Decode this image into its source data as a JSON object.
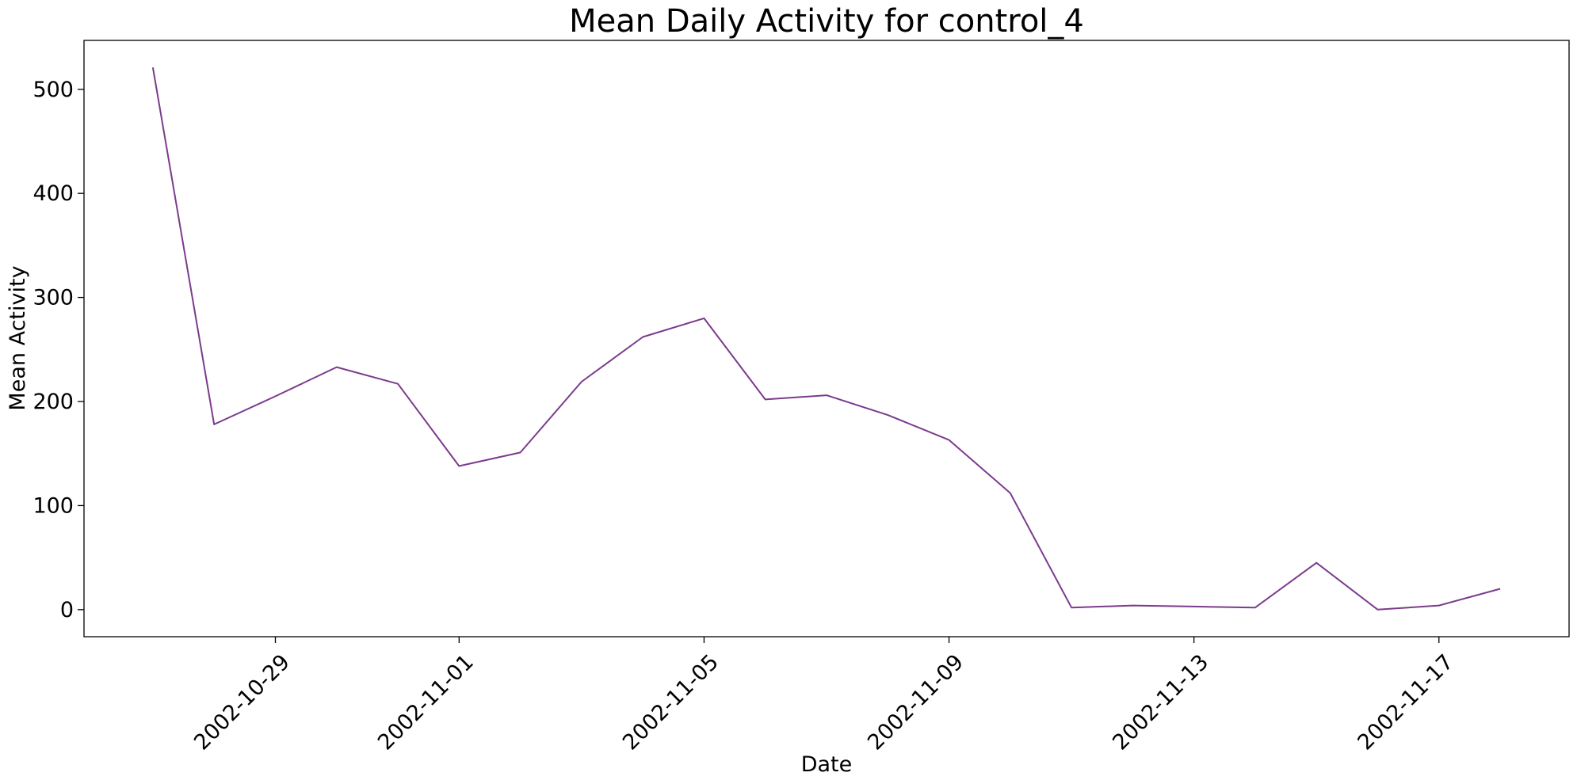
{
  "chart_data": {
    "type": "line",
    "title": "Mean Daily Activity for control_4",
    "xlabel": "Date",
    "ylabel": "Mean Activity",
    "x": [
      "2002-10-27",
      "2002-10-28",
      "2002-10-29",
      "2002-10-30",
      "2002-10-31",
      "2002-11-01",
      "2002-11-02",
      "2002-11-03",
      "2002-11-04",
      "2002-11-05",
      "2002-11-06",
      "2002-11-07",
      "2002-11-08",
      "2002-11-09",
      "2002-11-10",
      "2002-11-11",
      "2002-11-12",
      "2002-11-13",
      "2002-11-14",
      "2002-11-15",
      "2002-11-16",
      "2002-11-17",
      "2002-11-18"
    ],
    "series": [
      {
        "name": "control_4",
        "color": "#7b3b8c",
        "values": [
          521,
          178,
          205,
          233,
          217,
          138,
          151,
          219,
          262,
          280,
          202,
          206,
          187,
          163,
          112,
          2,
          4,
          3,
          2,
          45,
          0,
          4,
          20
        ]
      }
    ],
    "xticks": [
      "2002-10-29",
      "2002-11-01",
      "2002-11-05",
      "2002-11-09",
      "2002-11-13",
      "2002-11-17"
    ],
    "yticks": [
      0,
      100,
      200,
      300,
      400,
      500
    ],
    "xlim": [
      "2002-10-25T21:00",
      "2002-11-19T03:00"
    ],
    "ylim": [
      -26,
      547
    ],
    "grid": false
  }
}
